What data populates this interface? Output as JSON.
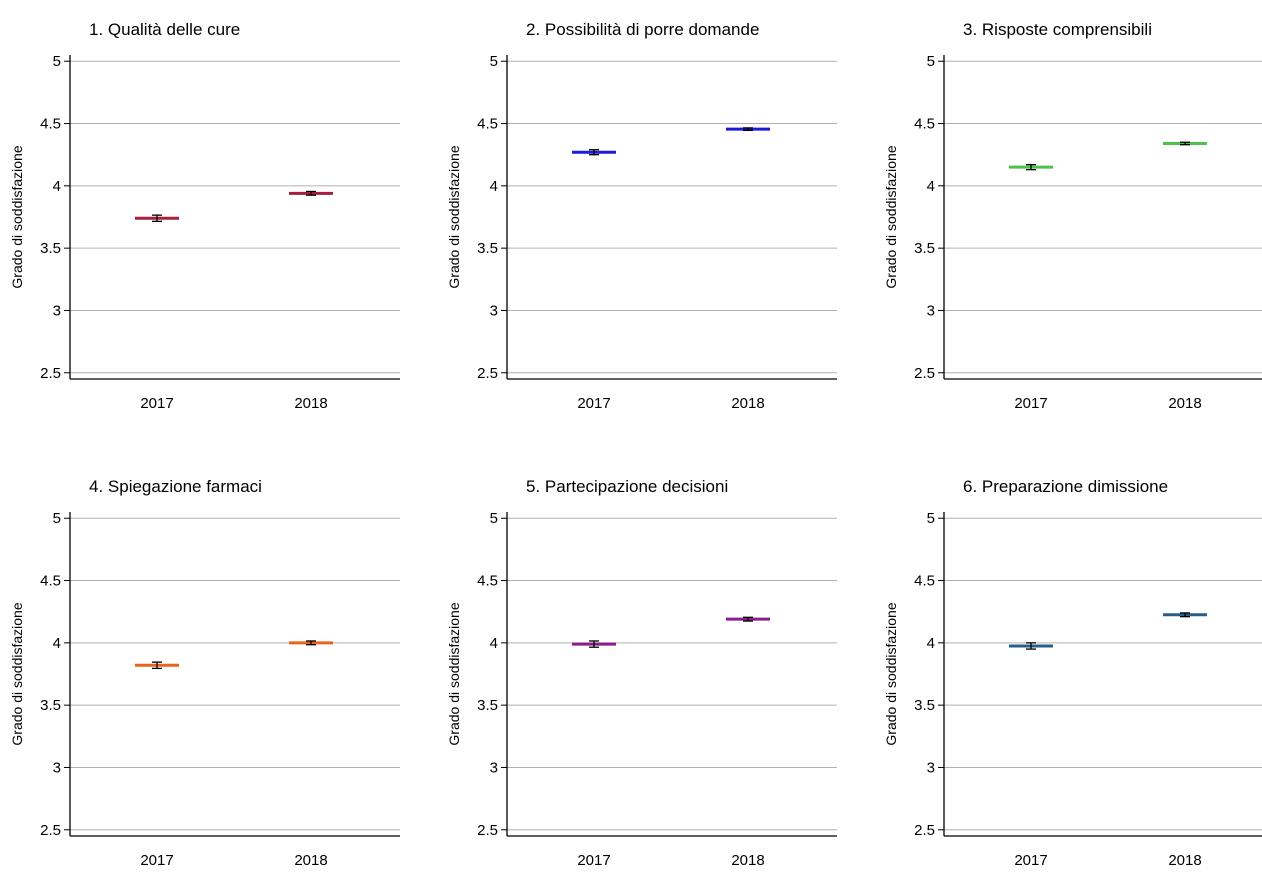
{
  "chart_data": [
    {
      "type": "scatter",
      "title": "1. Qualità delle cure",
      "ylabel": "Grado di soddisfazione",
      "xlabel": "",
      "categories": [
        "2017",
        "2018"
      ],
      "values": [
        3.74,
        3.94
      ],
      "ci_low": [
        3.715,
        3.925
      ],
      "ci_high": [
        3.765,
        3.955
      ],
      "ylim": [
        2.45,
        5.05
      ],
      "yticks": [
        "2.5",
        "3",
        "3.5",
        "4",
        "4.5",
        "5"
      ],
      "ytick_values": [
        2.5,
        3,
        3.5,
        4,
        4.5,
        5
      ],
      "color": "#a3213f",
      "grid": true
    },
    {
      "type": "scatter",
      "title": "2. Possibilità di porre domande",
      "ylabel": "Grado di soddisfazione",
      "xlabel": "",
      "categories": [
        "2017",
        "2018"
      ],
      "values": [
        4.27,
        4.455
      ],
      "ci_low": [
        4.25,
        4.445
      ],
      "ci_high": [
        4.29,
        4.465
      ],
      "ylim": [
        2.45,
        5.05
      ],
      "yticks": [
        "2.5",
        "3",
        "3.5",
        "4",
        "4.5",
        "5"
      ],
      "ytick_values": [
        2.5,
        3,
        3.5,
        4,
        4.5,
        5
      ],
      "color": "#1c1cd8",
      "grid": true
    },
    {
      "type": "scatter",
      "title": "3. Risposte comprensibili",
      "ylabel": "Grado di soddisfazione",
      "xlabel": "",
      "categories": [
        "2017",
        "2018"
      ],
      "values": [
        4.15,
        4.34
      ],
      "ci_low": [
        4.13,
        4.33
      ],
      "ci_high": [
        4.17,
        4.35
      ],
      "ylim": [
        2.45,
        5.05
      ],
      "yticks": [
        "2.5",
        "3",
        "3.5",
        "4",
        "4.5",
        "5"
      ],
      "ytick_values": [
        2.5,
        3,
        3.5,
        4,
        4.5,
        5
      ],
      "color": "#4cc24c",
      "grid": true
    },
    {
      "type": "scatter",
      "title": "4. Spiegazione farmaci",
      "ylabel": "Grado di soddisfazione",
      "xlabel": "",
      "categories": [
        "2017",
        "2018"
      ],
      "values": [
        3.82,
        4.0
      ],
      "ci_low": [
        3.795,
        3.985
      ],
      "ci_high": [
        3.845,
        4.015
      ],
      "ylim": [
        2.45,
        5.05
      ],
      "yticks": [
        "2.5",
        "3",
        "3.5",
        "4",
        "4.5",
        "5"
      ],
      "ytick_values": [
        2.5,
        3,
        3.5,
        4,
        4.5,
        5
      ],
      "color": "#e8641c",
      "grid": true
    },
    {
      "type": "scatter",
      "title": "5. Partecipazione decisioni",
      "ylabel": "Grado di soddisfazione",
      "xlabel": "",
      "categories": [
        "2017",
        "2018"
      ],
      "values": [
        3.99,
        4.19
      ],
      "ci_low": [
        3.965,
        4.175
      ],
      "ci_high": [
        4.015,
        4.205
      ],
      "ylim": [
        2.45,
        5.05
      ],
      "yticks": [
        "2.5",
        "3",
        "3.5",
        "4",
        "4.5",
        "5"
      ],
      "ytick_values": [
        2.5,
        3,
        3.5,
        4,
        4.5,
        5
      ],
      "color": "#8c1c8c",
      "grid": true
    },
    {
      "type": "scatter",
      "title": "6. Preparazione dimissione",
      "ylabel": "Grado di soddisfazione",
      "xlabel": "",
      "categories": [
        "2017",
        "2018"
      ],
      "values": [
        3.975,
        4.225
      ],
      "ci_low": [
        3.95,
        4.21
      ],
      "ci_high": [
        4.0,
        4.24
      ],
      "ylim": [
        2.45,
        5.05
      ],
      "yticks": [
        "2.5",
        "3",
        "3.5",
        "4",
        "4.5",
        "5"
      ],
      "ytick_values": [
        2.5,
        3,
        3.5,
        4,
        4.5,
        5
      ],
      "color": "#2a5e86",
      "grid": true
    }
  ]
}
